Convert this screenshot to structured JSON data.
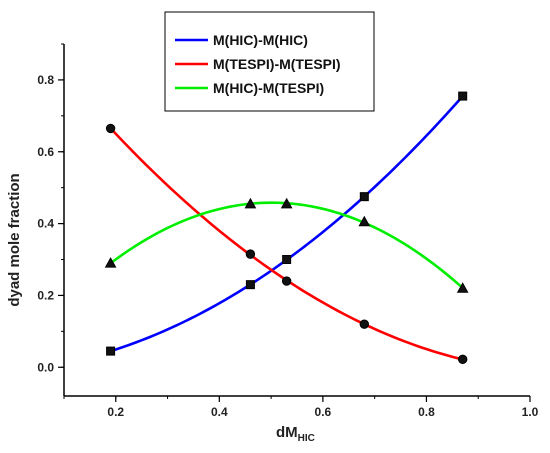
{
  "chart_data": {
    "type": "line",
    "xlabel_main": "dM",
    "xlabel_sub": "HIC",
    "ylabel": "dyad mole fraction",
    "xlim": [
      0.1,
      1.0
    ],
    "ylim": [
      -0.08,
      0.9
    ],
    "x_ticks": [
      0.2,
      0.4,
      0.6,
      0.8,
      1.0
    ],
    "x_tick_labels": [
      "0.2",
      "0.4",
      "0.6",
      "0.8",
      "1.0"
    ],
    "y_ticks": [
      0.0,
      0.2,
      0.4,
      0.6,
      0.8
    ],
    "y_tick_labels": [
      "0.0",
      "0.2",
      "0.4",
      "0.6",
      "0.8"
    ],
    "legend_position": "top-center",
    "series": [
      {
        "name": "M(HIC)-M(HIC)",
        "color": "#0000ff",
        "marker": "square",
        "x": [
          0.19,
          0.46,
          0.53,
          0.68,
          0.87
        ],
        "y": [
          0.045,
          0.23,
          0.3,
          0.475,
          0.755
        ]
      },
      {
        "name": "M(TESPI)-M(TESPI)",
        "color": "#ff0000",
        "marker": "circle",
        "x": [
          0.19,
          0.46,
          0.53,
          0.68,
          0.87
        ],
        "y": [
          0.665,
          0.315,
          0.24,
          0.12,
          0.022
        ]
      },
      {
        "name": "M(HIC)-M(TESPI)",
        "color": "#00ee00",
        "marker": "triangle",
        "x": [
          0.19,
          0.46,
          0.53,
          0.68,
          0.87
        ],
        "y": [
          0.29,
          0.455,
          0.455,
          0.405,
          0.22
        ]
      }
    ]
  }
}
